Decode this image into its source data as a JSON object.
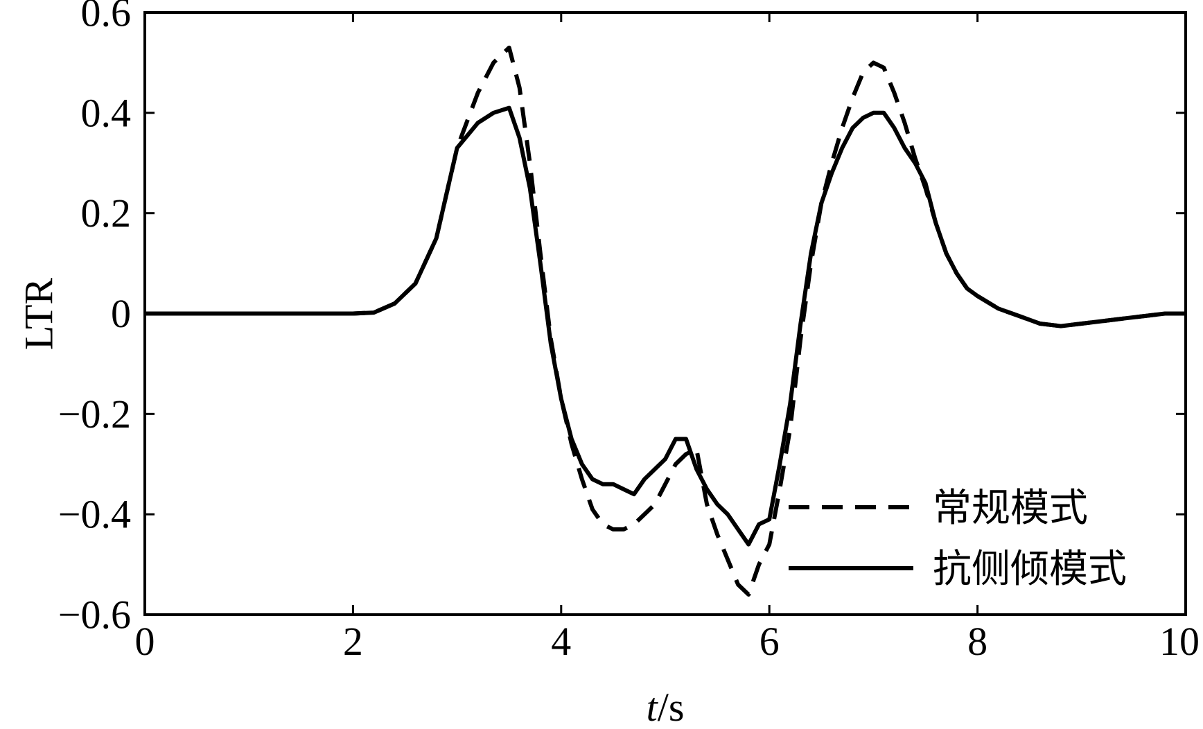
{
  "chart_data": {
    "type": "line",
    "title": "",
    "xlabel_italic": "t",
    "xlabel_rest": "/s",
    "ylabel": "LTR",
    "xlim": [
      0,
      10
    ],
    "ylim": [
      -0.6,
      0.6
    ],
    "xticks": [
      0,
      2,
      4,
      6,
      8,
      10
    ],
    "xtick_labels": [
      "0",
      "2",
      "4",
      "6",
      "8",
      "10"
    ],
    "yticks": [
      0.6,
      0.4,
      0.2,
      0,
      -0.2,
      -0.4,
      -0.6
    ],
    "ytick_labels": [
      "0.6",
      "0.4",
      "0.2",
      "0",
      "−0.2",
      "−0.4",
      "−0.6"
    ],
    "grid": false,
    "legend_position": "bottom-right",
    "series": [
      {
        "name": "常规模式",
        "style": "dashed",
        "color": "#000000",
        "x": [
          0,
          2.0,
          2.2,
          2.4,
          2.6,
          2.8,
          3.0,
          3.2,
          3.35,
          3.5,
          3.6,
          3.7,
          3.8,
          3.9,
          4.0,
          4.1,
          4.2,
          4.3,
          4.4,
          4.5,
          4.6,
          4.7,
          4.8,
          4.9,
          5.0,
          5.1,
          5.2,
          5.3,
          5.4,
          5.5,
          5.6,
          5.7,
          5.8,
          5.9,
          6.0,
          6.1,
          6.2,
          6.3,
          6.4,
          6.5,
          6.6,
          6.7,
          6.8,
          6.9,
          7.0,
          7.1,
          7.2,
          7.3,
          7.4,
          7.5,
          7.6,
          7.7,
          7.8,
          7.9,
          8.0,
          8.2,
          8.4,
          8.6,
          8.8,
          9.0,
          9.2,
          9.4,
          9.6,
          9.8,
          10.0
        ],
        "y": [
          0.0,
          0.0,
          0.002,
          0.02,
          0.06,
          0.15,
          0.33,
          0.44,
          0.5,
          0.53,
          0.45,
          0.3,
          0.12,
          -0.05,
          -0.17,
          -0.26,
          -0.33,
          -0.39,
          -0.42,
          -0.43,
          -0.43,
          -0.42,
          -0.4,
          -0.38,
          -0.34,
          -0.3,
          -0.28,
          -0.27,
          -0.38,
          -0.44,
          -0.49,
          -0.54,
          -0.56,
          -0.5,
          -0.46,
          -0.35,
          -0.23,
          -0.05,
          0.1,
          0.22,
          0.3,
          0.37,
          0.43,
          0.48,
          0.5,
          0.49,
          0.44,
          0.38,
          0.31,
          0.25,
          0.18,
          0.12,
          0.08,
          0.05,
          0.035,
          0.01,
          -0.005,
          -0.02,
          -0.025,
          -0.02,
          -0.015,
          -0.01,
          -0.005,
          0.0,
          0.0
        ]
      },
      {
        "name": "抗侧倾模式",
        "style": "solid",
        "color": "#000000",
        "x": [
          0,
          2.0,
          2.2,
          2.4,
          2.6,
          2.8,
          3.0,
          3.2,
          3.35,
          3.5,
          3.6,
          3.7,
          3.8,
          3.9,
          4.0,
          4.1,
          4.2,
          4.3,
          4.4,
          4.5,
          4.6,
          4.7,
          4.8,
          4.9,
          5.0,
          5.1,
          5.2,
          5.3,
          5.4,
          5.5,
          5.6,
          5.7,
          5.8,
          5.9,
          6.0,
          6.1,
          6.2,
          6.3,
          6.4,
          6.5,
          6.6,
          6.7,
          6.8,
          6.9,
          7.0,
          7.1,
          7.2,
          7.3,
          7.4,
          7.5,
          7.6,
          7.7,
          7.8,
          7.9,
          8.0,
          8.2,
          8.4,
          8.6,
          8.8,
          9.0,
          9.2,
          9.4,
          9.6,
          9.8,
          10.0
        ],
        "y": [
          0.0,
          0.0,
          0.002,
          0.02,
          0.06,
          0.15,
          0.33,
          0.38,
          0.4,
          0.41,
          0.35,
          0.25,
          0.1,
          -0.06,
          -0.17,
          -0.25,
          -0.3,
          -0.33,
          -0.34,
          -0.34,
          -0.35,
          -0.36,
          -0.33,
          -0.31,
          -0.29,
          -0.25,
          -0.25,
          -0.31,
          -0.35,
          -0.38,
          -0.4,
          -0.43,
          -0.46,
          -0.42,
          -0.41,
          -0.3,
          -0.18,
          -0.02,
          0.12,
          0.22,
          0.28,
          0.33,
          0.37,
          0.39,
          0.4,
          0.4,
          0.37,
          0.33,
          0.3,
          0.26,
          0.18,
          0.12,
          0.08,
          0.05,
          0.035,
          0.01,
          -0.005,
          -0.02,
          -0.025,
          -0.02,
          -0.015,
          -0.01,
          -0.005,
          0.0,
          0.0
        ]
      }
    ]
  }
}
